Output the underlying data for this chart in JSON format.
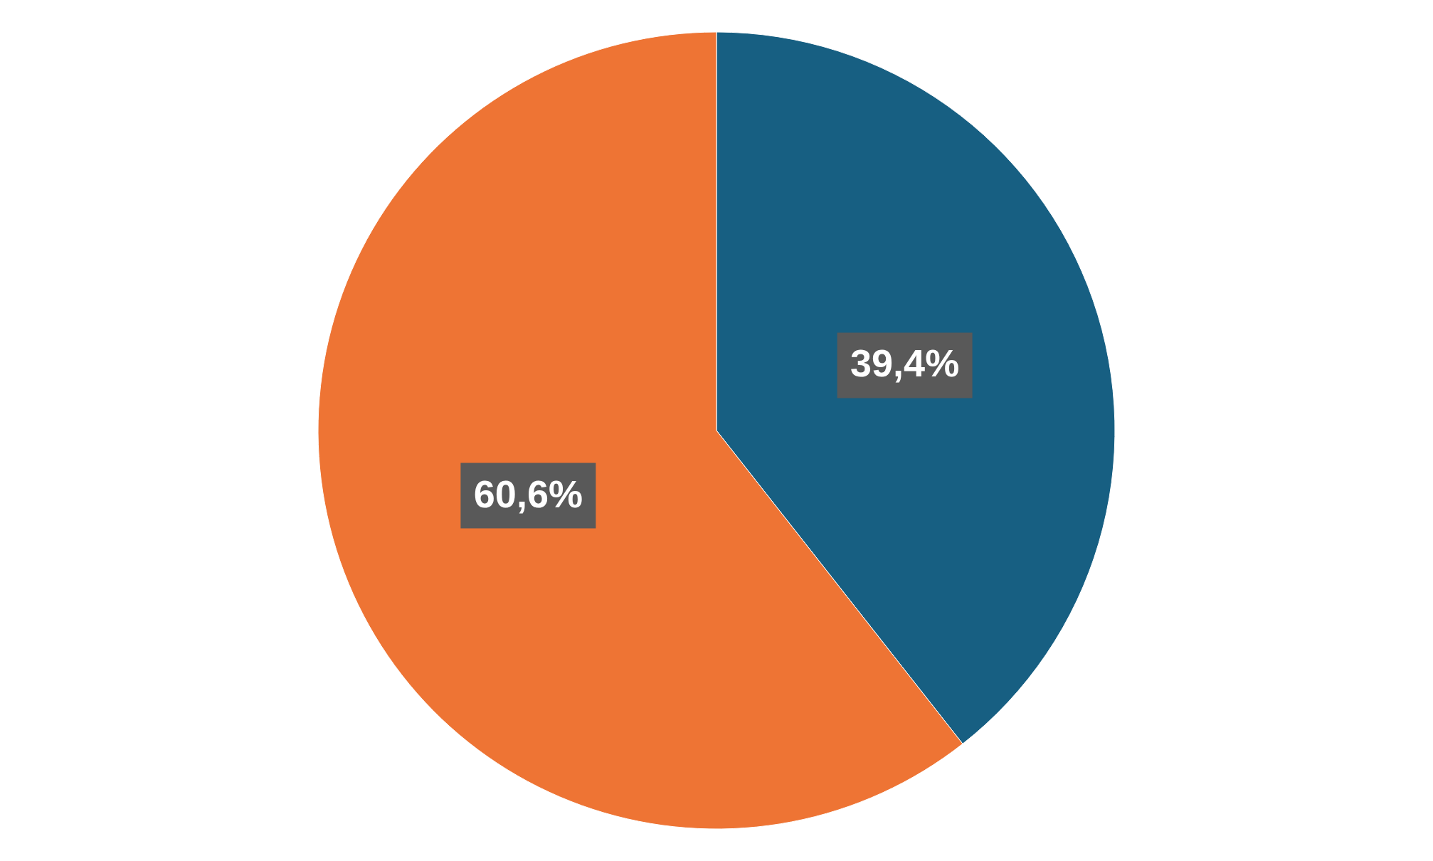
{
  "chart_data": {
    "type": "pie",
    "categories": [
      null,
      null
    ],
    "values": [
      39.4,
      60.6
    ],
    "colors": [
      "#175f82",
      "#ee7434"
    ],
    "value_labels": [
      "39,4%",
      "60,6%"
    ]
  }
}
